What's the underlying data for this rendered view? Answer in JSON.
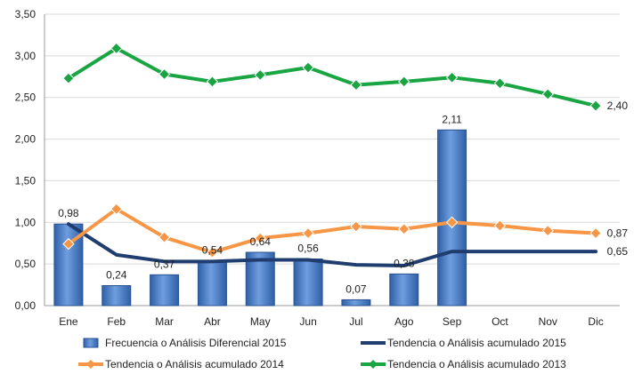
{
  "chart_data": {
    "type": "bar",
    "title": "",
    "xlabel": "",
    "ylabel": "",
    "ylim": [
      0,
      3.5
    ],
    "yticks": [
      "0,00",
      "0,50",
      "1,00",
      "1,50",
      "2,00",
      "2,50",
      "3,00",
      "3,50"
    ],
    "ytick_values": [
      0,
      0.5,
      1,
      1.5,
      2,
      2.5,
      3,
      3.5
    ],
    "categories": [
      "Ene",
      "Feb",
      "Mar",
      "Abr",
      "May",
      "Jun",
      "Jul",
      "Ago",
      "Sep",
      "Oct",
      "Nov",
      "Dic"
    ],
    "grid": true,
    "legend_position": "bottom",
    "series": [
      {
        "name": "Frecuencia o Análisis Diferencial 2015",
        "kind": "bar",
        "color": "#4a7fc9",
        "values": [
          0.98,
          0.24,
          0.37,
          0.54,
          0.64,
          0.56,
          0.07,
          0.38,
          2.11,
          null,
          null,
          null
        ],
        "labels": [
          "0,98",
          "0,24",
          "0,37",
          "0,54",
          "0,64",
          "0,56",
          "0,07",
          "0,38",
          "2,11",
          "",
          "",
          ""
        ]
      },
      {
        "name": "Tendencia o Análisis acumulado 2015",
        "kind": "line",
        "color": "#1f3d6e",
        "values": [
          0.98,
          0.61,
          0.53,
          0.53,
          0.55,
          0.55,
          0.49,
          0.48,
          0.65,
          0.65,
          0.65,
          0.65
        ],
        "end_label": "0,65"
      },
      {
        "name": "Tendencia o Análisis acumulado 2014",
        "kind": "line",
        "marker": "diamond",
        "color": "#f79646",
        "values": [
          0.74,
          1.16,
          0.82,
          0.64,
          0.81,
          0.87,
          0.95,
          0.92,
          1.0,
          0.96,
          0.9,
          0.87
        ],
        "end_label": "0,87"
      },
      {
        "name": "Tendencia o Análisis acumulado 2013",
        "kind": "line",
        "marker": "diamond",
        "color": "#1aa543",
        "values": [
          2.73,
          3.09,
          2.78,
          2.69,
          2.77,
          2.86,
          2.65,
          2.69,
          2.74,
          2.67,
          2.54,
          2.4
        ],
        "end_label": "2,40"
      }
    ]
  }
}
